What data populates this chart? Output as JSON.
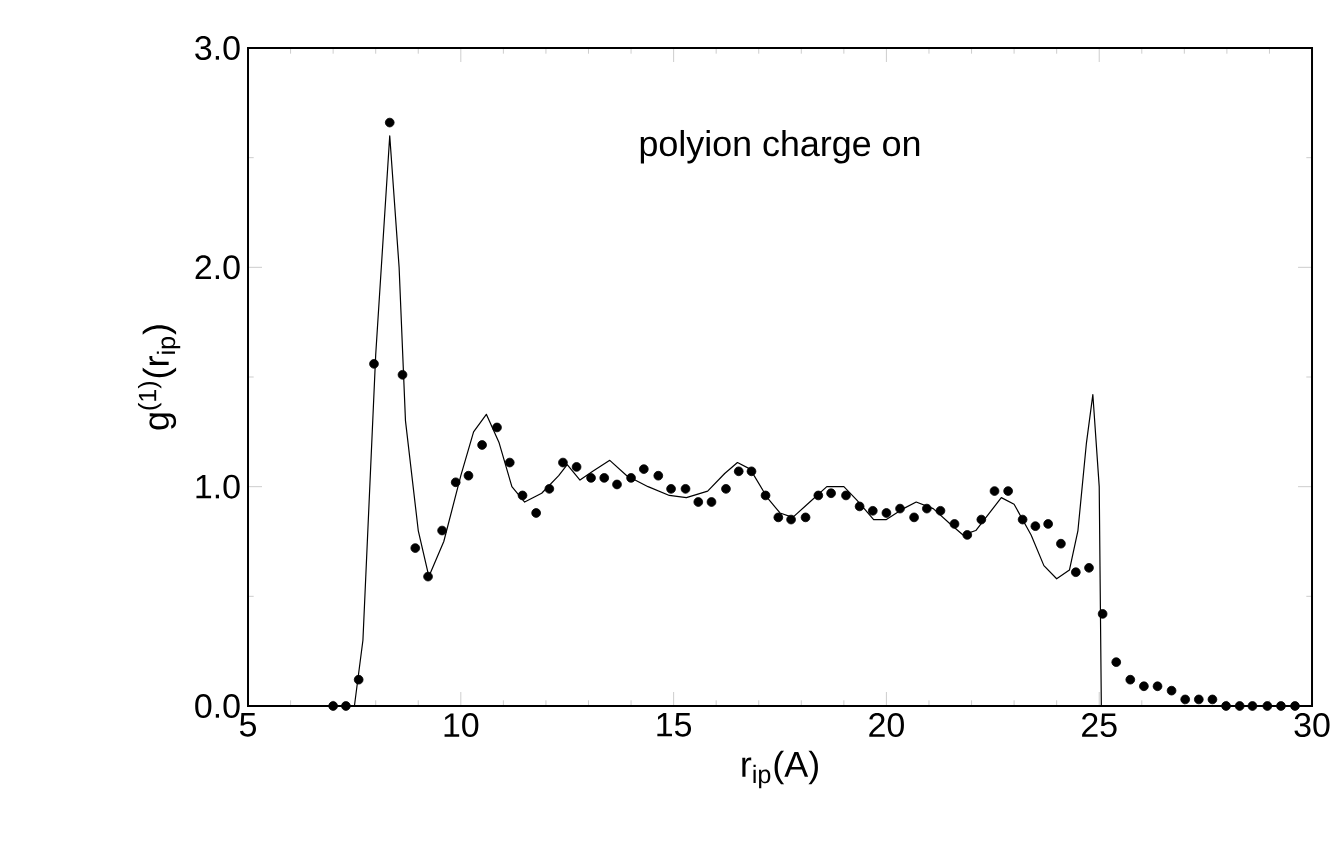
{
  "chart_data": {
    "type": "scatter",
    "xlabel": "r$_{ip}$(A)",
    "ylabel": "g$^{(1)}$(r$_{ip}$)",
    "annotations": [
      "polyion charge on"
    ],
    "xlim": [
      5,
      30
    ],
    "ylim": [
      0,
      3
    ],
    "xticks": [
      5,
      10,
      15,
      20,
      25,
      30
    ],
    "yticks": [
      {
        "value": 0,
        "label": "0.0"
      },
      {
        "value": 1,
        "label": "1.0"
      },
      {
        "value": 2,
        "label": "2.0"
      },
      {
        "value": 3,
        "label": "3.0"
      }
    ],
    "series": [
      {
        "color": "#000000",
        "marker": "circle",
        "x": [
          7.0,
          7.3,
          7.6,
          7.96,
          8.33,
          8.63,
          8.93,
          9.23,
          9.56,
          9.88,
          10.18,
          10.5,
          10.85,
          11.15,
          11.45,
          11.77,
          12.08,
          12.4,
          12.72,
          13.06,
          13.37,
          13.67,
          14.0,
          14.3,
          14.64,
          14.94,
          15.28,
          15.58,
          15.89,
          16.23,
          16.53,
          16.83,
          17.16,
          17.46,
          17.76,
          18.1,
          18.4,
          18.7,
          19.05,
          19.37,
          19.68,
          20.0,
          20.32,
          20.65,
          20.95,
          21.27,
          21.6,
          21.9,
          22.23,
          22.54,
          22.86,
          23.2,
          23.5,
          23.8,
          24.1,
          24.45,
          24.76,
          25.08,
          25.4,
          25.73,
          26.05,
          26.37,
          26.7,
          27.02,
          27.34,
          27.66,
          27.98,
          28.3,
          28.6,
          28.95,
          29.27,
          29.6
        ],
        "values": [
          0,
          0,
          0.12,
          1.56,
          2.66,
          1.51,
          0.72,
          0.59,
          0.8,
          1.02,
          1.05,
          1.19,
          1.27,
          1.11,
          0.96,
          0.88,
          0.99,
          1.11,
          1.09,
          1.04,
          1.04,
          1.01,
          1.04,
          1.08,
          1.05,
          0.99,
          0.99,
          0.93,
          0.93,
          0.99,
          1.07,
          1.07,
          0.96,
          0.86,
          0.85,
          0.86,
          0.96,
          0.97,
          0.96,
          0.91,
          0.89,
          0.88,
          0.9,
          0.86,
          0.9,
          0.89,
          0.83,
          0.78,
          0.85,
          0.98,
          0.98,
          0.85,
          0.82,
          0.83,
          0.74,
          0.61,
          0.63,
          0.42,
          0.2,
          0.12,
          0.09,
          0.09,
          0.07,
          0.03,
          0.03,
          0.03,
          0,
          0,
          0,
          0,
          0,
          0
        ]
      },
      {
        "type": "line",
        "color": "#000000",
        "line_style": "solid",
        "marker": "none",
        "x": [
          7.5,
          7.7,
          8.0,
          8.33,
          8.55,
          8.7,
          9.0,
          9.25,
          9.6,
          10.0,
          10.3,
          10.6,
          10.9,
          11.2,
          11.5,
          11.9,
          12.3,
          12.5,
          12.8,
          13.1,
          13.5,
          13.9,
          14.4,
          14.9,
          15.3,
          15.8,
          16.2,
          16.5,
          16.8,
          17.2,
          17.5,
          17.8,
          18.2,
          18.6,
          19.0,
          19.3,
          19.7,
          20.0,
          20.4,
          20.7,
          21.1,
          21.5,
          21.8,
          22.1,
          22.5,
          22.7,
          23.0,
          23.4,
          23.7,
          24.0,
          24.3,
          24.5,
          24.7,
          24.85,
          25.0,
          25.05
        ],
        "values": [
          0,
          0.3,
          1.6,
          2.6,
          2.0,
          1.3,
          0.8,
          0.59,
          0.75,
          1.05,
          1.25,
          1.33,
          1.2,
          1.0,
          0.93,
          0.97,
          1.05,
          1.1,
          1.03,
          1.07,
          1.12,
          1.05,
          1.0,
          0.96,
          0.95,
          0.98,
          1.06,
          1.11,
          1.08,
          0.95,
          0.88,
          0.86,
          0.93,
          1.0,
          1.0,
          0.94,
          0.85,
          0.85,
          0.9,
          0.93,
          0.9,
          0.83,
          0.78,
          0.8,
          0.9,
          0.95,
          0.92,
          0.78,
          0.64,
          0.58,
          0.62,
          0.8,
          1.2,
          1.42,
          1.0,
          0
        ]
      }
    ]
  }
}
